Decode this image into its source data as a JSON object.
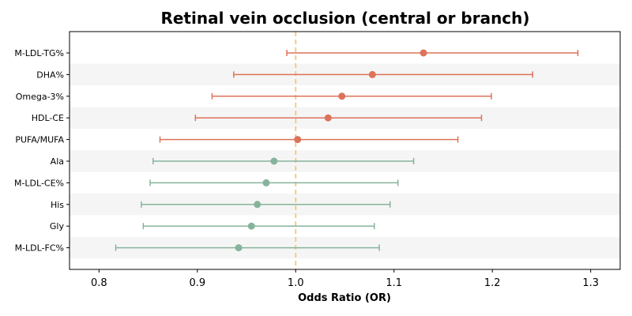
{
  "chart_data": {
    "type": "forest",
    "title": "Retinal vein occlusion (central or branch)",
    "xlabel": "Odds Ratio (OR)",
    "ylabel": "",
    "xlim": [
      0.77,
      1.33
    ],
    "xticks": [
      0.8,
      0.9,
      1.0,
      1.1,
      1.2,
      1.3
    ],
    "xtick_labels": [
      "0.8",
      "0.9",
      "1.0",
      "1.1",
      "1.2",
      "1.3"
    ],
    "reference_line": 1.0,
    "grid": false,
    "colors": {
      "positive": "#dd735a",
      "negative": "#86b49b",
      "reference": "#f5c98d",
      "band": "#f5f5f5"
    },
    "rows": [
      {
        "label": "M-LDL-TG%",
        "or": 1.13,
        "lower": 0.991,
        "upper": 1.287
      },
      {
        "label": "DHA%",
        "or": 1.078,
        "lower": 0.937,
        "upper": 1.241
      },
      {
        "label": "Omega-3%",
        "or": 1.047,
        "lower": 0.915,
        "upper": 1.199
      },
      {
        "label": "HDL-CE",
        "or": 1.033,
        "lower": 0.898,
        "upper": 1.189
      },
      {
        "label": "PUFA/MUFA",
        "or": 1.002,
        "lower": 0.862,
        "upper": 1.165
      },
      {
        "label": "Ala",
        "or": 0.978,
        "lower": 0.855,
        "upper": 1.12
      },
      {
        "label": "M-LDL-CE%",
        "or": 0.97,
        "lower": 0.852,
        "upper": 1.104
      },
      {
        "label": "His",
        "or": 0.961,
        "lower": 0.843,
        "upper": 1.096
      },
      {
        "label": "Gly",
        "or": 0.955,
        "lower": 0.845,
        "upper": 1.08
      },
      {
        "label": "M-LDL-FC%",
        "or": 0.942,
        "lower": 0.817,
        "upper": 1.085
      }
    ]
  }
}
